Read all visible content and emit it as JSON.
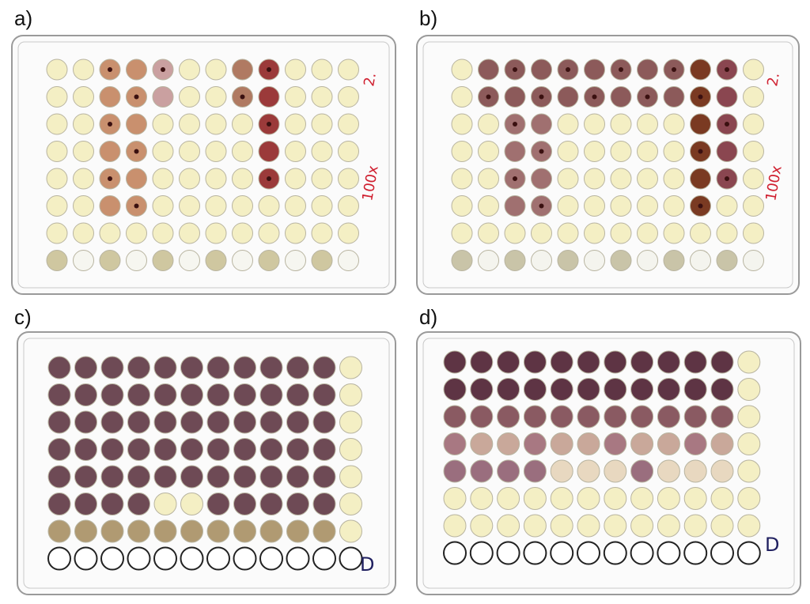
{
  "panels": [
    {
      "label": "a)",
      "notes": [
        "2.",
        "100x"
      ]
    },
    {
      "label": "b)",
      "notes": [
        "2.",
        "100x"
      ]
    },
    {
      "label": "c)",
      "notes": [
        "D"
      ]
    },
    {
      "label": "d)",
      "notes": [
        "D"
      ]
    }
  ]
}
